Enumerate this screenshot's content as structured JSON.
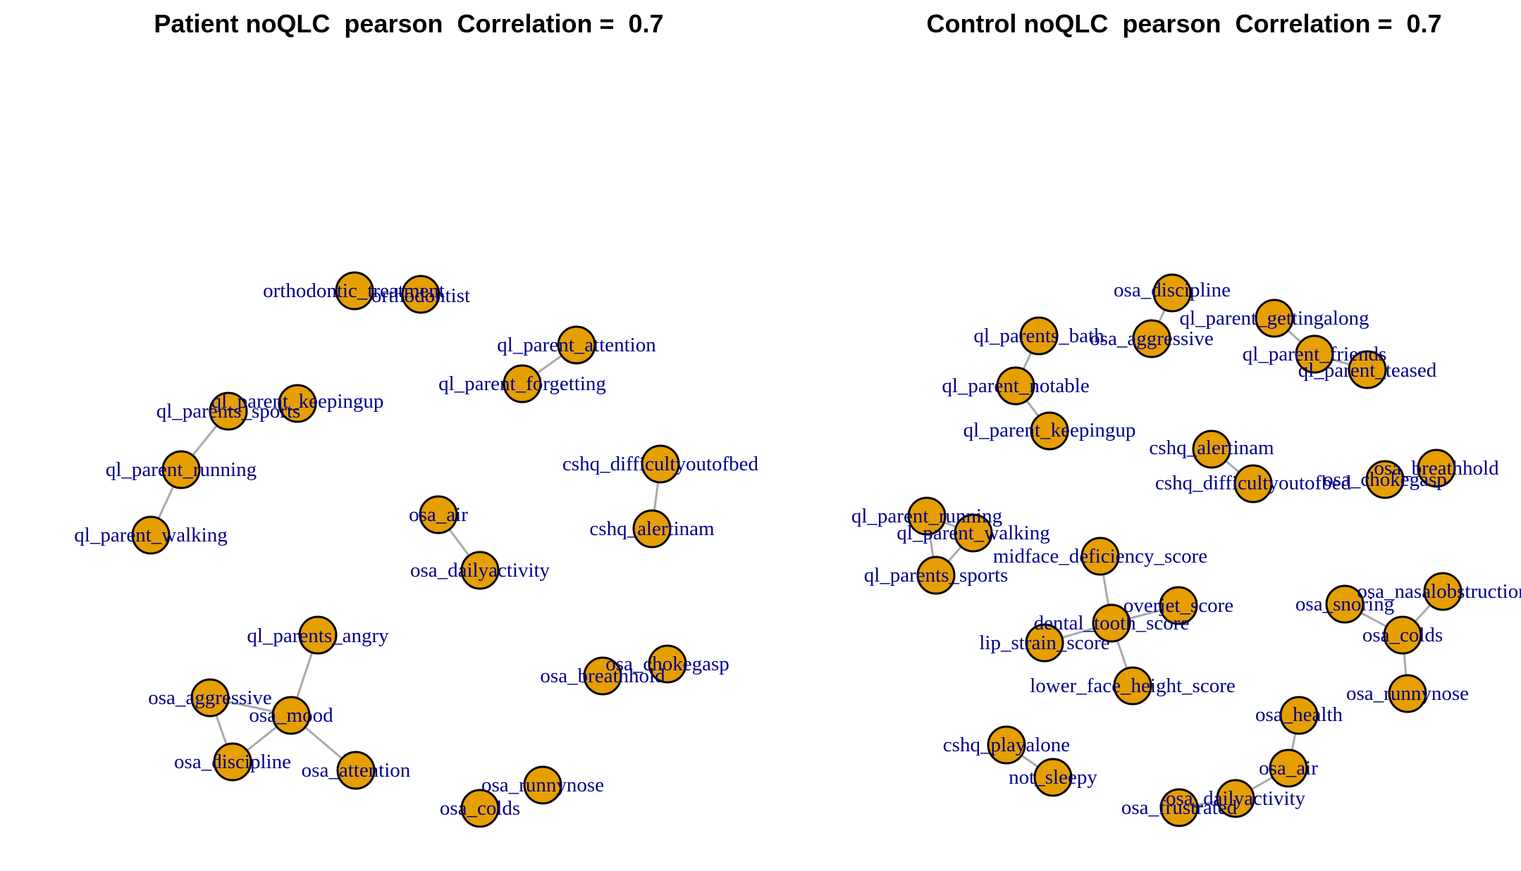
{
  "colors": {
    "node_fill": "#e69f00",
    "node_stroke": "#000000",
    "edge": "#a9a9a9",
    "label": "#00008b",
    "title": "#000000"
  },
  "chart_data": [
    {
      "type": "network",
      "title": "Patient noQLC  pearson  Correlation =  0.7",
      "correlation_threshold": 0.7,
      "nodes": [
        "orthodontic_treatment",
        "orthodontist",
        "ql_parent_attention",
        "ql_parent_forgetting",
        "ql_parents_sports",
        "ql_parent_keepingup",
        "ql_parent_running",
        "ql_parent_walking",
        "cshq_difficultyoutofbed",
        "cshq_alertinam",
        "osa_air",
        "osa_dailyactivity",
        "ql_parents_angry",
        "osa_aggressive",
        "osa_mood",
        "osa_discipline",
        "osa_attention",
        "osa_breathhold",
        "osa_chokegasp",
        "osa_runnynose",
        "osa_colds"
      ],
      "edges": [
        [
          "ql_parent_attention",
          "ql_parent_forgetting"
        ],
        [
          "ql_parents_sports",
          "ql_parent_running"
        ],
        [
          "ql_parent_running",
          "ql_parent_walking"
        ],
        [
          "cshq_difficultyoutofbed",
          "cshq_alertinam"
        ],
        [
          "osa_air",
          "osa_dailyactivity"
        ],
        [
          "ql_parents_angry",
          "osa_mood"
        ],
        [
          "osa_aggressive",
          "osa_mood"
        ],
        [
          "osa_aggressive",
          "osa_discipline"
        ],
        [
          "osa_mood",
          "osa_discipline"
        ],
        [
          "osa_mood",
          "osa_attention"
        ]
      ]
    },
    {
      "type": "network",
      "title": "Control noQLC  pearson  Correlation =  0.7",
      "correlation_threshold": 0.7,
      "nodes": [
        "osa_discipline",
        "osa_aggressive",
        "ql_parent_gettingalong",
        "ql_parent_friends",
        "ql_parent_teased",
        "ql_parents_bath",
        "ql_parent_notable",
        "ql_parent_keepingup",
        "cshq_alertinam",
        "cshq_difficultyoutofbed",
        "osa_breathhold",
        "osa_chokegasp",
        "ql_parent_running",
        "ql_parent_walking",
        "ql_parents_sports",
        "midface_deficiency_score",
        "overjet_score",
        "dental_tooth_score",
        "lip_strain_score",
        "lower_face_height_score",
        "osa_nasalobstruction",
        "osa_snoring",
        "osa_colds",
        "osa_runnynose",
        "osa_health",
        "osa_air",
        "osa_dailyactivity",
        "osa_frustrated",
        "cshq_playalone",
        "not_sleepy"
      ],
      "edges": [
        [
          "osa_discipline",
          "osa_aggressive"
        ],
        [
          "ql_parent_gettingalong",
          "ql_parent_friends"
        ],
        [
          "ql_parent_friends",
          "ql_parent_teased"
        ],
        [
          "ql_parents_bath",
          "ql_parent_notable"
        ],
        [
          "ql_parent_notable",
          "ql_parent_keepingup"
        ],
        [
          "cshq_alertinam",
          "cshq_difficultyoutofbed"
        ],
        [
          "ql_parent_running",
          "ql_parent_walking"
        ],
        [
          "ql_parent_running",
          "ql_parents_sports"
        ],
        [
          "ql_parent_walking",
          "ql_parents_sports"
        ],
        [
          "midface_deficiency_score",
          "dental_tooth_score"
        ],
        [
          "overjet_score",
          "dental_tooth_score"
        ],
        [
          "lip_strain_score",
          "dental_tooth_score"
        ],
        [
          "dental_tooth_score",
          "lower_face_height_score"
        ],
        [
          "osa_nasalobstruction",
          "osa_colds"
        ],
        [
          "osa_snoring",
          "osa_colds"
        ],
        [
          "osa_colds",
          "osa_runnynose"
        ],
        [
          "osa_health",
          "osa_air"
        ],
        [
          "osa_air",
          "osa_dailyactivity"
        ],
        [
          "osa_dailyactivity",
          "osa_frustrated"
        ],
        [
          "cshq_playalone",
          "not_sleepy"
        ]
      ]
    }
  ]
}
